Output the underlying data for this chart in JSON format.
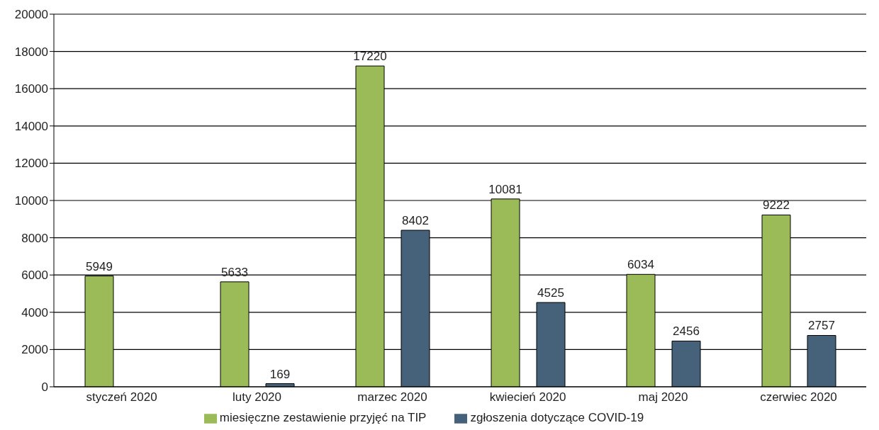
{
  "chart_data": {
    "type": "bar",
    "categories": [
      "styczeń 2020",
      "luty 2020",
      "marzec 2020",
      "kwiecień 2020",
      "maj 2020",
      "czerwiec 2020"
    ],
    "series": [
      {
        "name": "miesięczne zestawienie przyjęć na TIP",
        "color": "#9bbb59",
        "values": [
          5949,
          5633,
          17220,
          10081,
          6034,
          9222
        ]
      },
      {
        "name": "zgłoszenia dotyczące COVID-19",
        "color": "#46627a",
        "values": [
          null,
          169,
          8402,
          4525,
          2456,
          2757
        ]
      }
    ],
    "ylim": [
      0,
      20000
    ],
    "yticks": [
      0,
      2000,
      4000,
      6000,
      8000,
      10000,
      12000,
      14000,
      16000,
      18000,
      20000
    ],
    "grid": "y",
    "legend": "bottom",
    "data_labels": true
  }
}
